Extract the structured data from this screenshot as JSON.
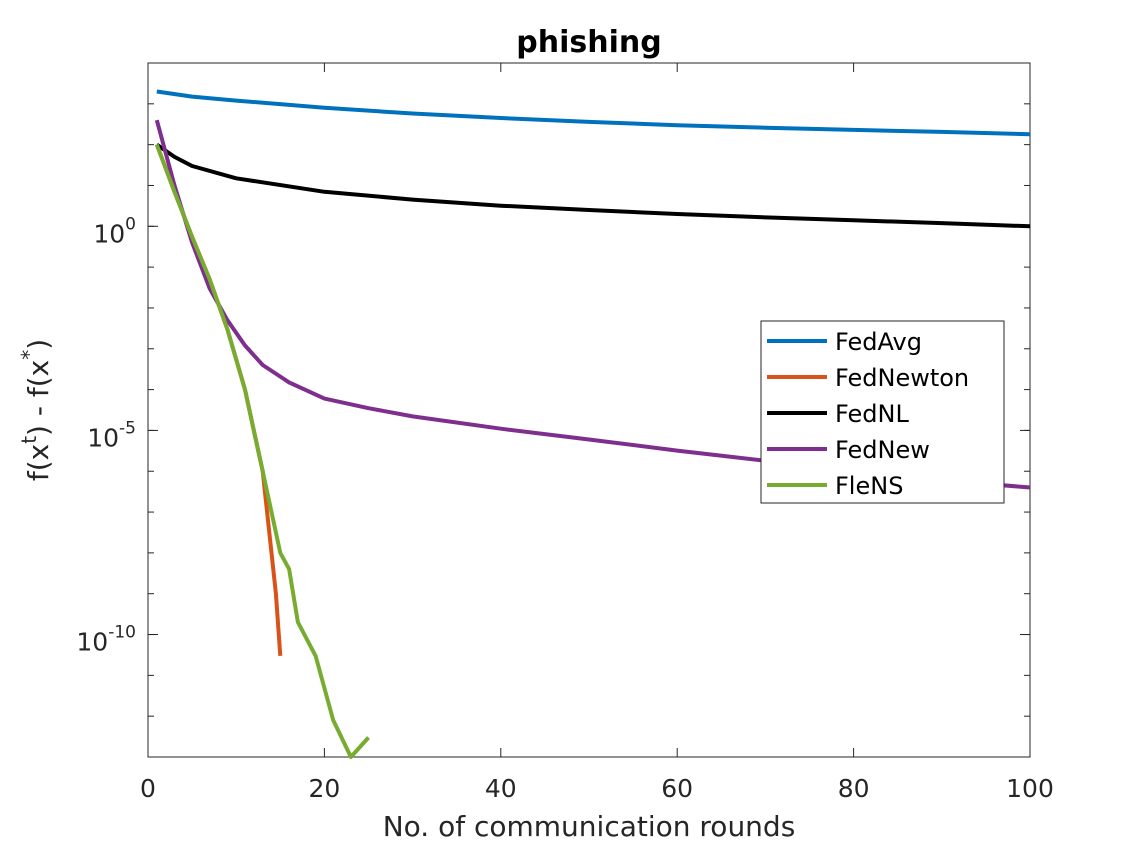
{
  "chart_data": {
    "type": "line",
    "title": "phishing",
    "xlabel": "No. of communication rounds",
    "ylabel": "f(x^t) - f(x^*)",
    "ylabel_parts": {
      "pre": "f(x",
      "sup1": "t",
      "mid": ") - f(x",
      "sup2": "*",
      "post": ")"
    },
    "xlim": [
      0,
      100
    ],
    "ylim": [
      1e-13,
      10000.0
    ],
    "yscale": "log",
    "xticks": [
      0,
      20,
      40,
      60,
      80,
      100
    ],
    "xtick_labels": [
      "0",
      "20",
      "40",
      "60",
      "80",
      "100"
    ],
    "yticks": [
      {
        "value": 1,
        "base": "10",
        "exp": "0"
      },
      {
        "value": 1e-05,
        "base": "10",
        "exp": "-5"
      },
      {
        "value": 1e-10,
        "base": "10",
        "exp": "-10"
      }
    ],
    "grid": false,
    "legend_position": "center-right",
    "series": [
      {
        "name": "FedAvg",
        "color": "#0072BD",
        "x": [
          1,
          5,
          10,
          20,
          30,
          40,
          50,
          60,
          70,
          80,
          90,
          100
        ],
        "y": [
          2000,
          1500,
          1200,
          800,
          580,
          450,
          360,
          300,
          260,
          230,
          205,
          180
        ]
      },
      {
        "name": "FedNewton",
        "color": "#D95319",
        "x": [
          1,
          3,
          5,
          7,
          9,
          11,
          12,
          13,
          13.5,
          14,
          14.5,
          15
        ],
        "y": [
          100,
          7,
          0.55,
          0.05,
          0.003,
          0.0001,
          1e-05,
          1e-06,
          1e-07,
          1e-08,
          1e-09,
          3e-11
        ]
      },
      {
        "name": "FedNL",
        "color": "#000000",
        "x": [
          1,
          3,
          5,
          10,
          20,
          30,
          40,
          50,
          60,
          70,
          80,
          90,
          100
        ],
        "y": [
          100,
          50,
          30,
          15,
          7,
          4.5,
          3.2,
          2.5,
          2.0,
          1.65,
          1.4,
          1.2,
          1.0
        ]
      },
      {
        "name": "FedNew",
        "color": "#7E2F8E",
        "x": [
          1,
          3,
          5,
          7,
          9,
          11,
          13,
          16,
          20,
          25,
          30,
          40,
          50,
          60,
          70,
          80,
          90,
          100
        ],
        "y": [
          400,
          10,
          0.4,
          0.03,
          0.005,
          0.0012,
          0.0004,
          0.00015,
          6e-05,
          3.5e-05,
          2.2e-05,
          1.1e-05,
          6e-06,
          3.2e-06,
          1.8e-06,
          1e-06,
          6e-07,
          4e-07
        ]
      },
      {
        "name": "FleNS",
        "color": "#77AC30",
        "x": [
          1,
          3,
          5,
          7,
          9,
          11,
          12,
          13,
          14,
          15,
          16,
          17,
          19,
          21,
          23,
          25
        ],
        "y": [
          100,
          7,
          0.55,
          0.05,
          0.003,
          0.0001,
          1e-05,
          1e-06,
          1e-07,
          1e-08,
          4e-09,
          2e-10,
          3e-11,
          8e-13,
          1e-13,
          3e-13
        ]
      }
    ]
  }
}
